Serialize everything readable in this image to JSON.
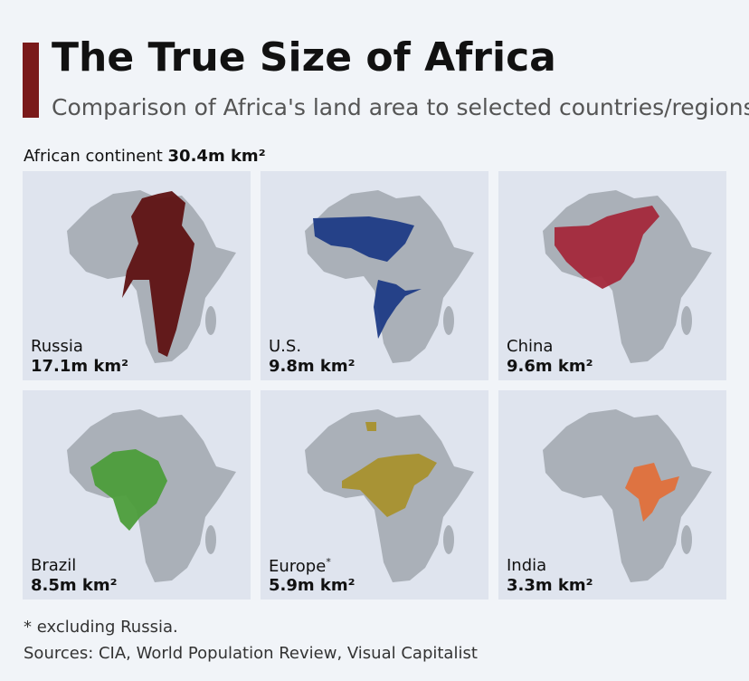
{
  "header": {
    "title": "The True Size of Africa",
    "subtitle": "Comparison of Africa's land area to selected countries/regions"
  },
  "continent": {
    "label": "African continent",
    "value": "30.4m km²"
  },
  "panels": [
    {
      "name": "Russia",
      "area": "17.1m km²",
      "color": "#5e1212"
    },
    {
      "name": "U.S.",
      "area": "9.8m km²",
      "color": "#1d3b85"
    },
    {
      "name": "China",
      "area": "9.6m km²",
      "color": "#a3283a"
    },
    {
      "name": "Brazil",
      "area": "8.5m km²",
      "color": "#4c9d3a"
    },
    {
      "name": "Europe",
      "note": "*",
      "area": "5.9m km²",
      "color": "#a8912d"
    },
    {
      "name": "India",
      "area": "3.3m km²",
      "color": "#e0703a"
    }
  ],
  "footnote": "* excluding Russia.",
  "sources": "Sources: CIA, World Population Review, Visual Capitalist"
}
